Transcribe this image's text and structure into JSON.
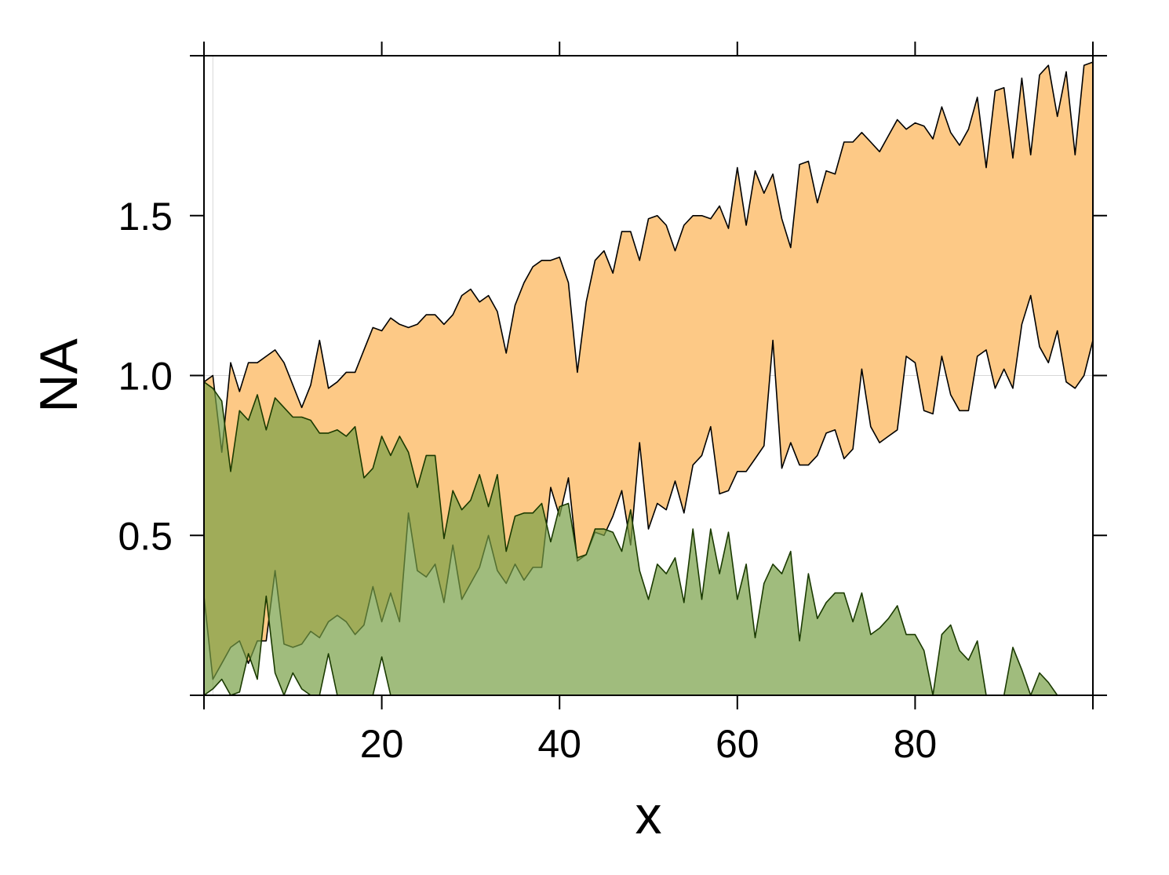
{
  "chart_data": {
    "type": "area",
    "xlabel": "x",
    "ylabel": "NA",
    "xlim": [
      0,
      100
    ],
    "ylim": [
      0,
      2
    ],
    "x_ticks": [
      20,
      40,
      60,
      80
    ],
    "x_tick_labels": [
      "20",
      "40",
      "60",
      "80"
    ],
    "y_ticks": [
      0.5,
      1.0,
      1.5
    ],
    "y_tick_labels": [
      "0.5",
      "1.0",
      "1.5"
    ],
    "grid": true,
    "grid_lines": {
      "x": [
        1
      ],
      "y": [
        1.0
      ]
    },
    "legend": "none",
    "x": [
      0,
      1,
      2,
      3,
      4,
      5,
      6,
      7,
      8,
      9,
      10,
      11,
      12,
      13,
      14,
      15,
      16,
      17,
      18,
      19,
      20,
      21,
      22,
      23,
      24,
      25,
      26,
      27,
      28,
      29,
      30,
      31,
      32,
      33,
      34,
      35,
      36,
      37,
      38,
      39,
      40,
      41,
      42,
      43,
      44,
      45,
      46,
      47,
      48,
      49,
      50,
      51,
      52,
      53,
      54,
      55,
      56,
      57,
      58,
      59,
      60,
      61,
      62,
      63,
      64,
      65,
      66,
      67,
      68,
      69,
      70,
      71,
      72,
      73,
      74,
      75,
      76,
      77,
      78,
      79,
      80,
      81,
      82,
      83,
      84,
      85,
      86,
      87,
      88,
      89,
      90,
      91,
      92,
      93,
      94,
      95,
      96,
      97,
      98,
      99,
      100
    ],
    "bands": [
      {
        "color": "#fdc986",
        "stroke": "#000000",
        "upper": [
          0.98,
          1.0,
          0.76,
          1.04,
          0.95,
          1.04,
          1.04,
          1.06,
          1.08,
          1.04,
          0.97,
          0.9,
          0.97,
          1.11,
          0.96,
          0.98,
          1.01,
          1.01,
          1.08,
          1.15,
          1.14,
          1.18,
          1.16,
          1.15,
          1.16,
          1.19,
          1.19,
          1.16,
          1.19,
          1.25,
          1.27,
          1.23,
          1.25,
          1.2,
          1.07,
          1.22,
          1.29,
          1.34,
          1.36,
          1.36,
          1.37,
          1.29,
          1.01,
          1.23,
          1.36,
          1.39,
          1.32,
          1.45,
          1.45,
          1.36,
          1.49,
          1.5,
          1.47,
          1.39,
          1.47,
          1.5,
          1.5,
          1.49,
          1.53,
          1.46,
          1.65,
          1.47,
          1.64,
          1.57,
          1.63,
          1.49,
          1.4,
          1.66,
          1.67,
          1.54,
          1.64,
          1.63,
          1.73,
          1.73,
          1.76,
          1.73,
          1.7,
          1.75,
          1.8,
          1.77,
          1.79,
          1.78,
          1.74,
          1.84,
          1.76,
          1.72,
          1.77,
          1.87,
          1.65,
          1.89,
          1.9,
          1.68,
          1.93,
          1.69,
          1.94,
          1.97,
          1.81,
          1.95,
          1.69,
          1.97,
          1.98
        ],
        "lower": [
          0.31,
          0.05,
          0.1,
          0.15,
          0.17,
          0.1,
          0.17,
          0.17,
          0.39,
          0.16,
          0.15,
          0.16,
          0.2,
          0.18,
          0.23,
          0.25,
          0.23,
          0.19,
          0.22,
          0.34,
          0.23,
          0.32,
          0.23,
          0.57,
          0.39,
          0.37,
          0.41,
          0.29,
          0.47,
          0.3,
          0.35,
          0.4,
          0.5,
          0.39,
          0.35,
          0.41,
          0.36,
          0.4,
          0.4,
          0.65,
          0.56,
          0.68,
          0.42,
          0.44,
          0.51,
          0.5,
          0.56,
          0.64,
          0.47,
          0.79,
          0.52,
          0.6,
          0.58,
          0.67,
          0.57,
          0.72,
          0.75,
          0.84,
          0.63,
          0.64,
          0.7,
          0.7,
          0.74,
          0.78,
          1.11,
          0.71,
          0.79,
          0.72,
          0.72,
          0.75,
          0.82,
          0.83,
          0.74,
          0.77,
          1.02,
          0.84,
          0.79,
          0.81,
          0.83,
          1.06,
          1.04,
          0.89,
          0.88,
          1.06,
          0.94,
          0.89,
          0.89,
          1.06,
          1.08,
          0.96,
          1.02,
          0.96,
          1.16,
          1.25,
          1.09,
          1.04,
          1.14,
          0.98,
          0.96,
          1.0,
          1.11
        ]
      },
      {
        "color": "#779f46",
        "opacity": 0.7,
        "stroke": "#1a3a00",
        "upper": [
          0.98,
          0.96,
          0.92,
          0.7,
          0.89,
          0.86,
          0.94,
          0.83,
          0.93,
          0.9,
          0.87,
          0.87,
          0.86,
          0.82,
          0.82,
          0.83,
          0.81,
          0.84,
          0.68,
          0.71,
          0.81,
          0.75,
          0.81,
          0.76,
          0.65,
          0.75,
          0.75,
          0.49,
          0.64,
          0.58,
          0.61,
          0.69,
          0.59,
          0.69,
          0.45,
          0.56,
          0.57,
          0.57,
          0.6,
          0.48,
          0.59,
          0.6,
          0.43,
          0.44,
          0.52,
          0.52,
          0.51,
          0.45,
          0.58,
          0.39,
          0.3,
          0.41,
          0.38,
          0.43,
          0.29,
          0.52,
          0.3,
          0.52,
          0.38,
          0.51,
          0.3,
          0.41,
          0.18,
          0.35,
          0.41,
          0.38,
          0.45,
          0.17,
          0.38,
          0.24,
          0.29,
          0.32,
          0.32,
          0.23,
          0.32,
          0.19,
          0.21,
          0.24,
          0.28,
          0.19,
          0.19,
          0.14,
          0.0,
          0.19,
          0.22,
          0.14,
          0.11,
          0.17,
          0.0,
          0.0,
          0.0,
          0.15,
          0.08,
          0.0,
          0.07,
          0.04,
          0.0,
          0.0,
          0.0,
          0.0,
          0.0
        ],
        "lower": [
          0.0,
          0.02,
          0.05,
          0.0,
          0.01,
          0.13,
          0.05,
          0.31,
          0.07,
          0.0,
          0.07,
          0.02,
          0.0,
          0.0,
          0.13,
          0.0,
          0.0,
          0.0,
          0.0,
          0.0,
          0.12,
          0.0,
          0.0,
          0.0,
          0.0,
          0.0,
          0.0,
          0.0,
          0.0,
          0.0,
          0.0,
          0.0,
          0.0,
          0.0,
          0.0,
          0.0,
          0.0,
          0.0,
          0.0,
          0.0,
          0.0,
          0.0,
          0.0,
          0.0,
          0.0,
          0.0,
          0.0,
          0.0,
          0.0,
          0.0,
          0.0,
          0.0,
          0.0,
          0.0,
          0.0,
          0.0,
          0.0,
          0.0,
          0.0,
          0.0,
          0.0,
          0.0,
          0.0,
          0.0,
          0.0,
          0.0,
          0.0,
          0.0,
          0.0,
          0.0,
          0.0,
          0.0,
          0.0,
          0.0,
          0.0,
          0.0,
          0.0,
          0.0,
          0.0,
          0.0,
          0.0,
          0.0,
          0.0,
          0.0,
          0.0,
          0.0,
          0.0,
          0.0,
          0.0,
          0.0,
          0.0,
          0.0,
          0.0,
          0.0,
          0.0,
          0.0,
          0.0,
          0.0,
          0.0,
          0.0,
          0.0
        ]
      }
    ]
  }
}
